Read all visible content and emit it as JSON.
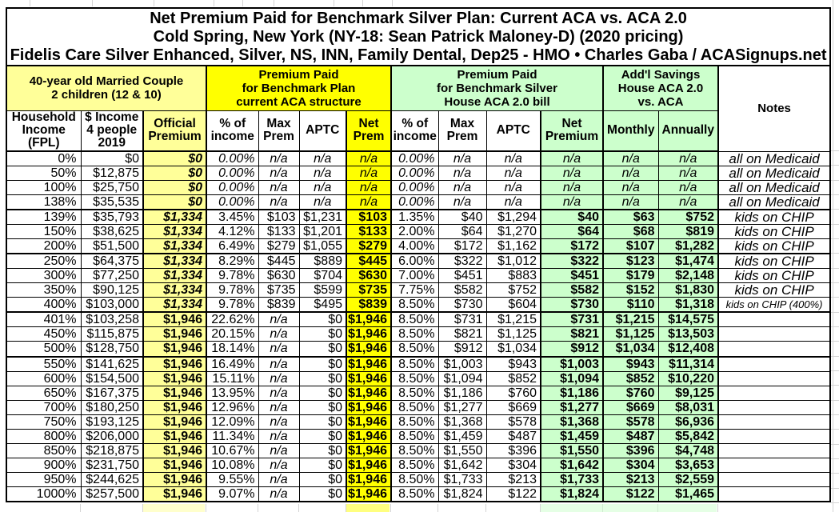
{
  "title_lines": [
    "Net Premium Paid for Benchmark Silver Plan: Current ACA vs. ACA 2.0",
    "Cold Spring, New York (NY-18: Sean Patrick Maloney-D) (2020 pricing)",
    "Fidelis Care Silver Enhanced, Silver, NS, INN, Family Dental, Dep25 - HMO • Charles Gaba / ACASignups.net"
  ],
  "section_headers": {
    "household": [
      "40-year old Married Couple",
      "2 children (12 & 10)"
    ],
    "aca": [
      "Premium Paid",
      "for Benchmark Plan",
      "current ACA structure"
    ],
    "aca20": [
      "Premium Paid",
      "for Benchmark Silver",
      "House ACA 2.0 bill"
    ],
    "savings": [
      "Add'l Savings",
      "House ACA 2.0",
      "vs. ACA"
    ],
    "notes": "Notes"
  },
  "column_headers": [
    [
      "Household",
      "Income",
      "(FPL)"
    ],
    [
      "$ Income",
      "4 people",
      "2019"
    ],
    [
      "Official",
      "Premium"
    ],
    [
      "% of",
      "income"
    ],
    [
      "Max",
      "Prem"
    ],
    [
      "APTC"
    ],
    [
      "Net",
      "Prem"
    ],
    [
      "% of",
      "income"
    ],
    [
      "Max",
      "Prem"
    ],
    [
      "APTC"
    ],
    [
      "Net",
      "Premium"
    ],
    [
      "Monthly"
    ],
    [
      "Annually"
    ]
  ],
  "colors": {
    "light_yellow": "#ffff99",
    "yellow": "#ffff00",
    "light_green": "#ccffcc"
  },
  "chart_data": {
    "type": "table",
    "rows": [
      {
        "cells": [
          "0%",
          "$0",
          "$0",
          "0.00%",
          "n/a",
          "n/a",
          "n/a",
          "0.00%",
          "n/a",
          "n/a",
          "n/a",
          "n/a",
          "n/a",
          "all on Medicaid"
        ],
        "band": 1,
        "style": "medicaid"
      },
      {
        "cells": [
          "50%",
          "$12,875",
          "$0",
          "0.00%",
          "n/a",
          "n/a",
          "n/a",
          "0.00%",
          "n/a",
          "n/a",
          "n/a",
          "n/a",
          "n/a",
          "all on Medicaid"
        ],
        "band": 1,
        "style": "medicaid"
      },
      {
        "cells": [
          "100%",
          "$25,750",
          "$0",
          "0.00%",
          "n/a",
          "n/a",
          "n/a",
          "0.00%",
          "n/a",
          "n/a",
          "n/a",
          "n/a",
          "n/a",
          "all on Medicaid"
        ],
        "band": 1,
        "style": "medicaid"
      },
      {
        "cells": [
          "138%",
          "$35,535",
          "$0",
          "0.00%",
          "n/a",
          "n/a",
          "n/a",
          "0.00%",
          "n/a",
          "n/a",
          "n/a",
          "n/a",
          "n/a",
          "all on Medicaid"
        ],
        "band": 1,
        "style": "medicaid"
      },
      {
        "cells": [
          "139%",
          "$35,793",
          "$1,334",
          "3.45%",
          "$103",
          "$1,231",
          "$103",
          "1.35%",
          "$40",
          "$1,294",
          "$40",
          "$63",
          "$752",
          "kids on CHIP"
        ],
        "band": 2,
        "style": "chip"
      },
      {
        "cells": [
          "150%",
          "$38,625",
          "$1,334",
          "4.12%",
          "$133",
          "$1,201",
          "$133",
          "2.00%",
          "$64",
          "$1,270",
          "$64",
          "$68",
          "$819",
          "kids on CHIP"
        ],
        "band": 2,
        "style": "chip"
      },
      {
        "cells": [
          "200%",
          "$51,500",
          "$1,334",
          "6.49%",
          "$279",
          "$1,055",
          "$279",
          "4.00%",
          "$172",
          "$1,162",
          "$172",
          "$107",
          "$1,282",
          "kids on CHIP"
        ],
        "band": 2,
        "style": "chip"
      },
      {
        "cells": [
          "250%",
          "$64,375",
          "$1,334",
          "8.29%",
          "$445",
          "$889",
          "$445",
          "6.00%",
          "$322",
          "$1,012",
          "$322",
          "$123",
          "$1,474",
          "kids on CHIP"
        ],
        "band": 3,
        "style": "chip"
      },
      {
        "cells": [
          "300%",
          "$77,250",
          "$1,334",
          "9.78%",
          "$630",
          "$704",
          "$630",
          "7.00%",
          "$451",
          "$883",
          "$451",
          "$179",
          "$2,148",
          "kids on CHIP"
        ],
        "band": 3,
        "style": "chip"
      },
      {
        "cells": [
          "350%",
          "$90,125",
          "$1,334",
          "9.78%",
          "$735",
          "$599",
          "$735",
          "7.75%",
          "$582",
          "$752",
          "$582",
          "$152",
          "$1,830",
          "kids on CHIP"
        ],
        "band": 3,
        "style": "chip"
      },
      {
        "cells": [
          "400%",
          "$103,000",
          "$1,334",
          "9.78%",
          "$839",
          "$495",
          "$839",
          "8.50%",
          "$730",
          "$604",
          "$730",
          "$110",
          "$1,318",
          "kids on CHIP (400%)"
        ],
        "band": 3,
        "style": "chip400"
      },
      {
        "cells": [
          "401%",
          "$103,258",
          "$1,946",
          "22.62%",
          "n/a",
          "$0",
          "$1,946",
          "8.50%",
          "$731",
          "$1,215",
          "$731",
          "$1,215",
          "$14,575",
          ""
        ],
        "band": 4,
        "style": "standard"
      },
      {
        "cells": [
          "450%",
          "$115,875",
          "$1,946",
          "20.15%",
          "n/a",
          "$0",
          "$1,946",
          "8.50%",
          "$821",
          "$1,125",
          "$821",
          "$1,125",
          "$13,503",
          ""
        ],
        "band": 4,
        "style": "standard"
      },
      {
        "cells": [
          "500%",
          "$128,750",
          "$1,946",
          "18.14%",
          "n/a",
          "$0",
          "$1,946",
          "8.50%",
          "$912",
          "$1,034",
          "$912",
          "$1,034",
          "$12,408",
          ""
        ],
        "band": 4,
        "style": "standard"
      },
      {
        "cells": [
          "550%",
          "$141,625",
          "$1,946",
          "16.49%",
          "n/a",
          "$0",
          "$1,946",
          "8.50%",
          "$1,003",
          "$943",
          "$1,003",
          "$943",
          "$11,314",
          ""
        ],
        "band": 5,
        "style": "standard"
      },
      {
        "cells": [
          "600%",
          "$154,500",
          "$1,946",
          "15.11%",
          "n/a",
          "$0",
          "$1,946",
          "8.50%",
          "$1,094",
          "$852",
          "$1,094",
          "$852",
          "$10,220",
          ""
        ],
        "band": 5,
        "style": "standard"
      },
      {
        "cells": [
          "650%",
          "$167,375",
          "$1,946",
          "13.95%",
          "n/a",
          "$0",
          "$1,946",
          "8.50%",
          "$1,186",
          "$760",
          "$1,186",
          "$760",
          "$9,125",
          ""
        ],
        "band": 5,
        "style": "standard"
      },
      {
        "cells": [
          "700%",
          "$180,250",
          "$1,946",
          "12.96%",
          "n/a",
          "$0",
          "$1,946",
          "8.50%",
          "$1,277",
          "$669",
          "$1,277",
          "$669",
          "$8,031",
          ""
        ],
        "band": 5,
        "style": "standard"
      },
      {
        "cells": [
          "750%",
          "$193,125",
          "$1,946",
          "12.09%",
          "n/a",
          "$0",
          "$1,946",
          "8.50%",
          "$1,368",
          "$578",
          "$1,368",
          "$578",
          "$6,936",
          ""
        ],
        "band": 5,
        "style": "standard"
      },
      {
        "cells": [
          "800%",
          "$206,000",
          "$1,946",
          "11.34%",
          "n/a",
          "$0",
          "$1,946",
          "8.50%",
          "$1,459",
          "$487",
          "$1,459",
          "$487",
          "$5,842",
          ""
        ],
        "band": 5,
        "style": "standard"
      },
      {
        "cells": [
          "850%",
          "$218,875",
          "$1,946",
          "10.67%",
          "n/a",
          "$0",
          "$1,946",
          "8.50%",
          "$1,550",
          "$396",
          "$1,550",
          "$396",
          "$4,748",
          ""
        ],
        "band": 5,
        "style": "standard"
      },
      {
        "cells": [
          "900%",
          "$231,750",
          "$1,946",
          "10.08%",
          "n/a",
          "$0",
          "$1,946",
          "8.50%",
          "$1,642",
          "$304",
          "$1,642",
          "$304",
          "$3,653",
          ""
        ],
        "band": 5,
        "style": "standard"
      },
      {
        "cells": [
          "950%",
          "$244,625",
          "$1,946",
          "9.55%",
          "n/a",
          "$0",
          "$1,946",
          "8.50%",
          "$1,733",
          "$213",
          "$1,733",
          "$213",
          "$2,559",
          ""
        ],
        "band": 5,
        "style": "standard"
      },
      {
        "cells": [
          "1000%",
          "$257,500",
          "$1,946",
          "9.07%",
          "n/a",
          "$0",
          "$1,946",
          "8.50%",
          "$1,824",
          "$122",
          "$1,824",
          "$122",
          "$1,465",
          ""
        ],
        "band": 5,
        "style": "standard"
      }
    ]
  }
}
